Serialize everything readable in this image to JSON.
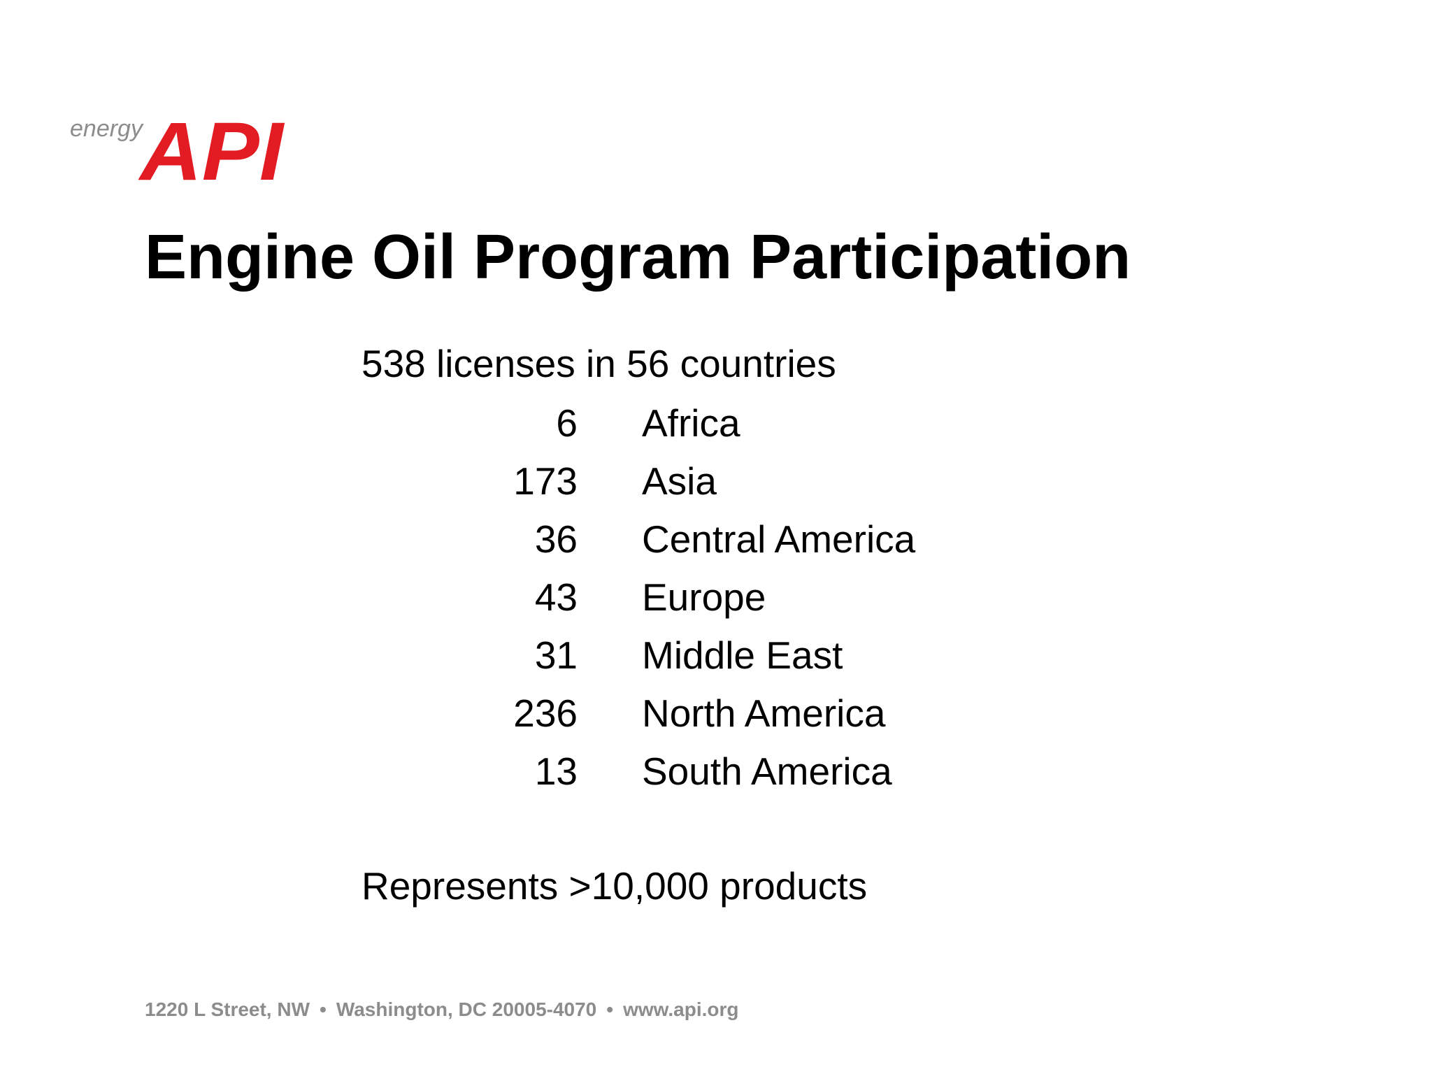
{
  "logo": {
    "word": "energy",
    "brand": "API",
    "brand_color": "#e31b23",
    "word_color": "#8c8c8c"
  },
  "title": "Engine Oil Program Participation",
  "summary": "538 licenses in 56 countries",
  "regions": [
    {
      "count": "6",
      "name": "Africa"
    },
    {
      "count": "173",
      "name": "Asia"
    },
    {
      "count": "36",
      "name": "Central America"
    },
    {
      "count": "43",
      "name": "Europe"
    },
    {
      "count": "31",
      "name": "Middle East"
    },
    {
      "count": "236",
      "name": "North America"
    },
    {
      "count": "13",
      "name": "South America"
    }
  ],
  "products": "Represents >10,000 products",
  "footer": {
    "address": "1220 L Street, NW",
    "city": "Washington, DC 20005-4070",
    "website": "www.api.org",
    "separator": "•"
  }
}
